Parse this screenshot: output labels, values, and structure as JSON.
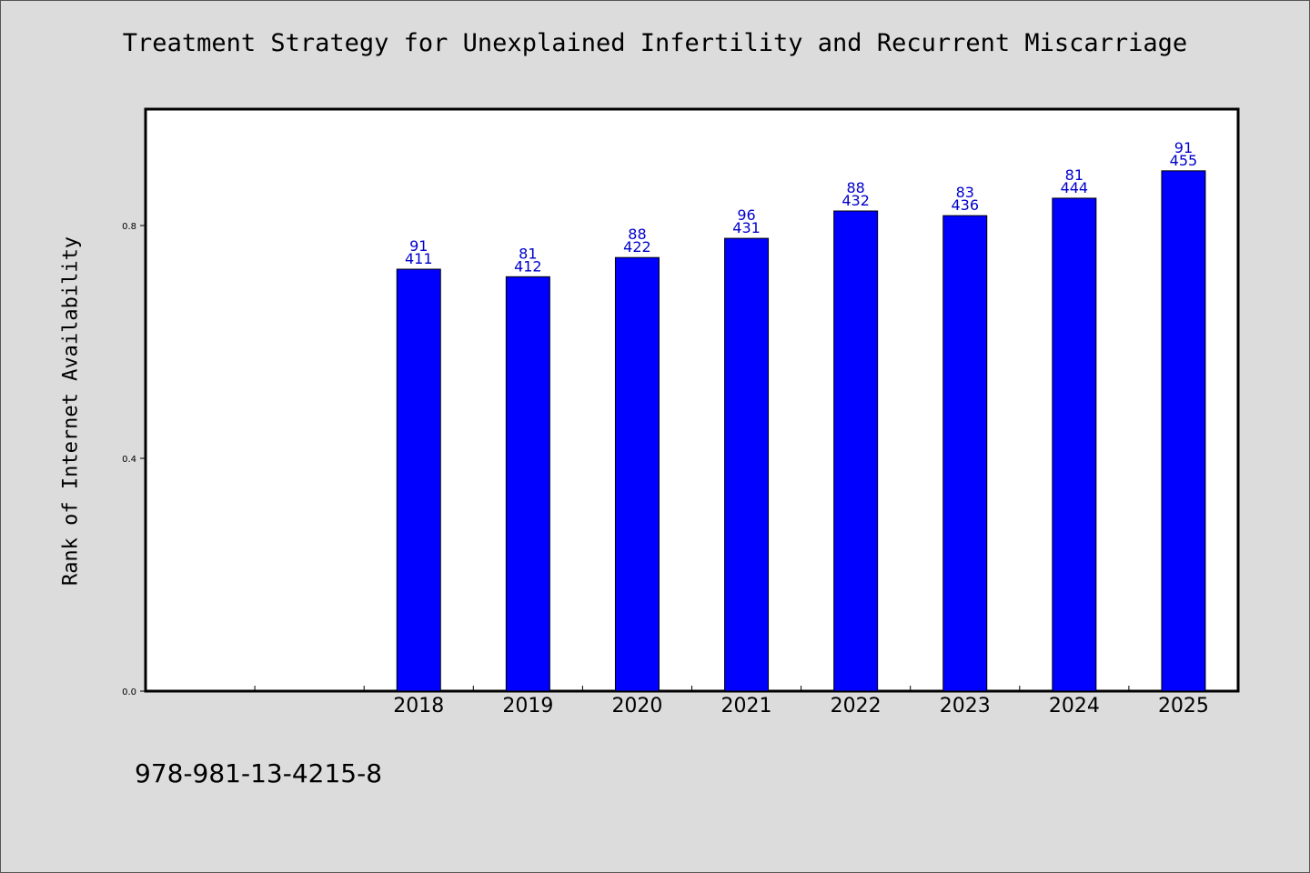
{
  "chart_data": {
    "type": "bar",
    "title": "Treatment Strategy for Unexplained Infertility and Recurrent Miscarriage",
    "xlabel": "",
    "ylabel": "Rank of Internet Availability",
    "categories": [
      "",
      "",
      "2018",
      "2019",
      "2020",
      "2021",
      "2022",
      "2023",
      "2024",
      "2025"
    ],
    "values": [
      null,
      null,
      0.725,
      0.712,
      0.745,
      0.778,
      0.825,
      0.817,
      0.847,
      0.894
    ],
    "bar_labels_top": [
      "",
      "",
      "91",
      "81",
      "88",
      "96",
      "88",
      "83",
      "81",
      "91"
    ],
    "bar_labels_bottom": [
      "",
      "",
      "411",
      "412",
      "422",
      "431",
      "432",
      "436",
      "444",
      "455"
    ],
    "yticks": [
      0.0,
      0.4,
      0.8
    ],
    "ytick_labels": [
      "0.0",
      "0.4",
      "0.8"
    ],
    "ylim": [
      0,
      1.0
    ],
    "grid": false,
    "legend": "none",
    "bar_color": "#0000ff",
    "label_color": "#0000cc"
  },
  "footer": {
    "code": "978-981-13-4215-8"
  }
}
